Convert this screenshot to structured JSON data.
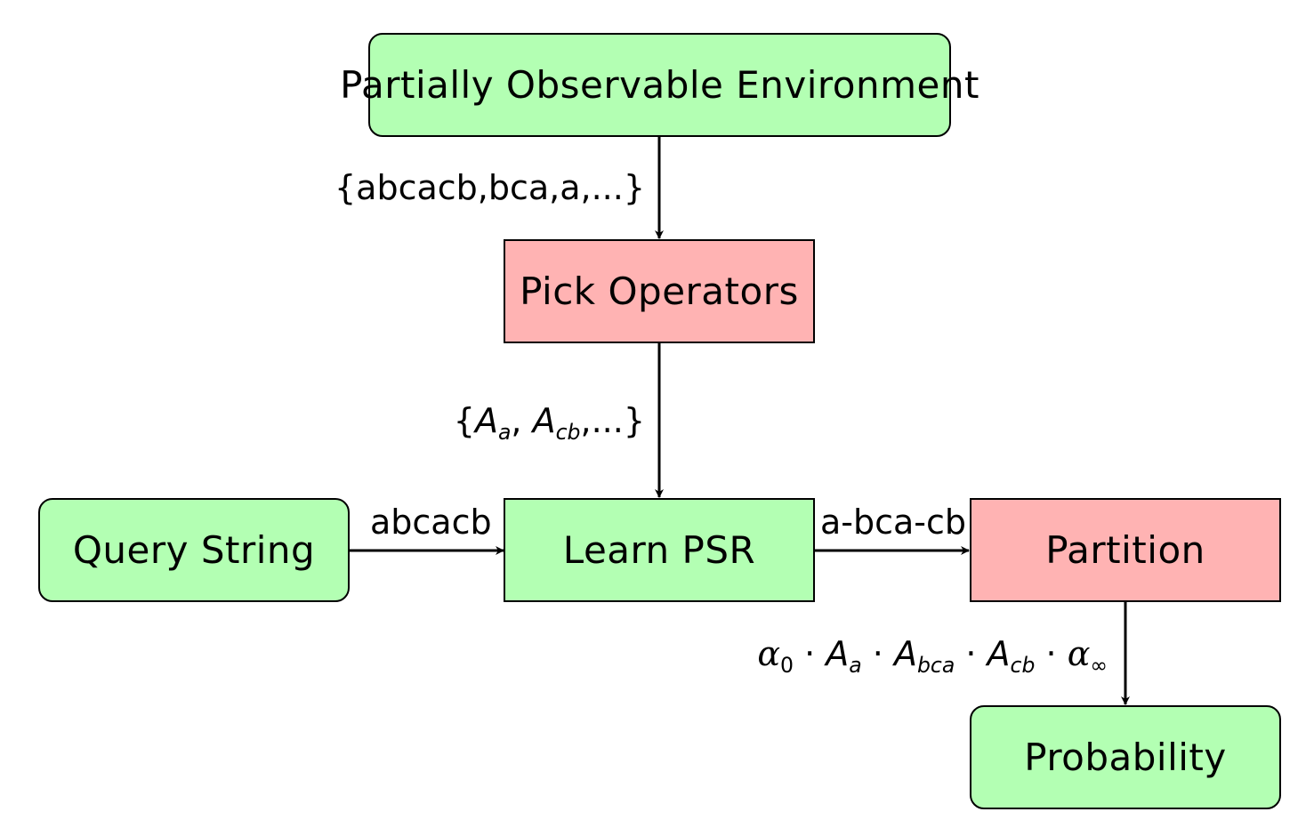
{
  "nodes": {
    "environment": "Partially Observable Environment",
    "pick_operators": "Pick Operators",
    "query_string": "Query String",
    "learn_psr": "Learn PSR",
    "partition": "Partition",
    "probability": "Probability"
  },
  "edge_labels": {
    "env_to_pick": "{abcacb,bca,a,...}",
    "pick_to_learn": {
      "open": "{",
      "A1": "A",
      "A1_sub": "a",
      "sep": ", ",
      "A2": "A",
      "A2_sub": "cb",
      "close": ",...}"
    },
    "query_to_learn": "abcacb",
    "learn_to_partition": "a-bca-cb",
    "partition_to_probability": {
      "alpha0": "α",
      "alpha0_sub": "0",
      "dot": " · ",
      "A1": "A",
      "A1_sub": "a",
      "A2": "A",
      "A2_sub": "bca",
      "A3": "A",
      "A3_sub": "cb",
      "alphaInf": "α",
      "alphaInf_sub": "∞"
    }
  },
  "colors": {
    "green_fill": "#b3ffb3",
    "red_fill": "#ffb3b3",
    "stroke": "#000000"
  }
}
